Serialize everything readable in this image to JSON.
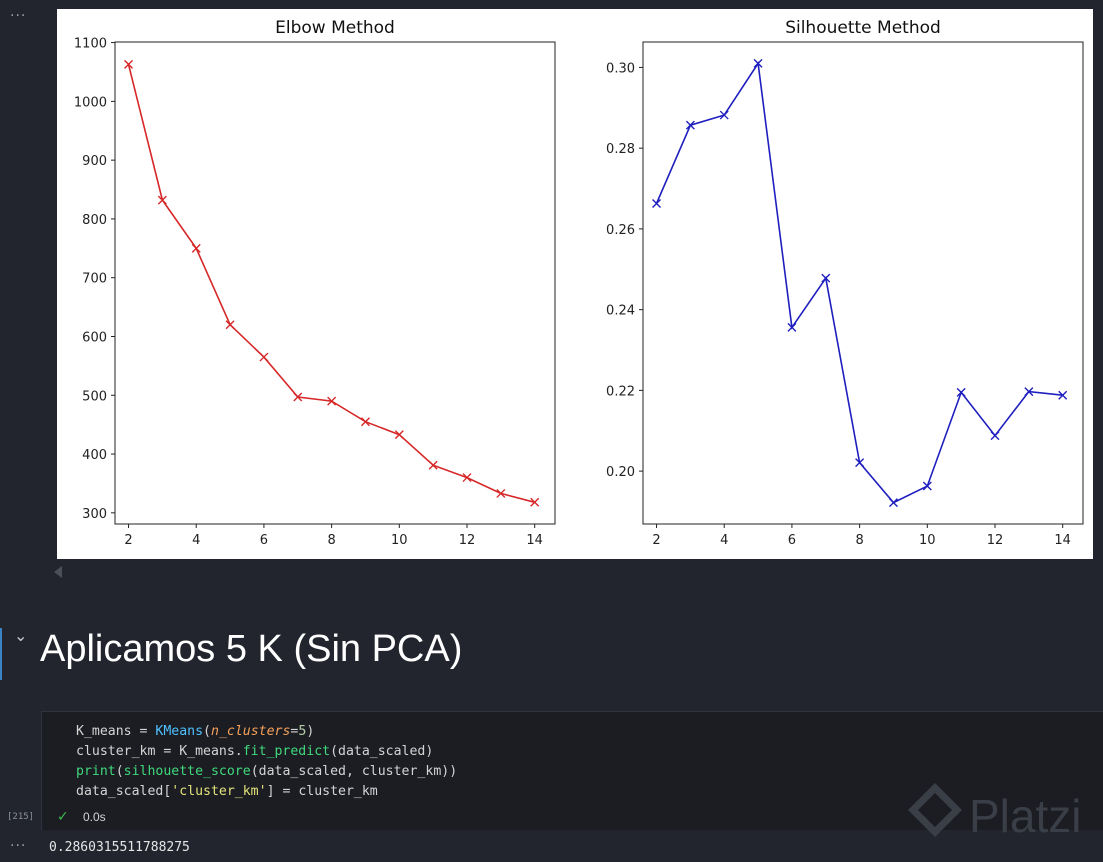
{
  "gutter": {
    "cell_menu": "···",
    "output_menu": "···"
  },
  "plots": {
    "chart_data": [
      {
        "type": "line",
        "title": "Elbow Method",
        "x": [
          2,
          3,
          4,
          5,
          6,
          7,
          8,
          9,
          10,
          11,
          12,
          13,
          14
        ],
        "series": [
          {
            "values": [
              1063,
              832,
              750,
              620,
              565,
              497,
              490,
              455,
              433,
              381,
              360,
              333,
              318
            ],
            "color": "#d62728",
            "marker": "x"
          }
        ],
        "xticks": [
          2,
          4,
          6,
          8,
          10,
          12,
          14
        ],
        "yticks": [
          300,
          400,
          500,
          600,
          700,
          800,
          900,
          1000,
          1100
        ],
        "xlim": [
          1.6,
          14.6
        ],
        "ylim": [
          281,
          1101
        ],
        "xlabel": "",
        "ylabel": "",
        "grid": false
      },
      {
        "type": "line",
        "title": "Silhouette Method",
        "x": [
          2,
          3,
          4,
          5,
          6,
          7,
          8,
          9,
          10,
          11,
          12,
          13,
          14
        ],
        "series": [
          {
            "values": [
              0.2663,
              0.2857,
              0.2882,
              0.301,
              0.2356,
              0.2478,
              0.2021,
              0.1922,
              0.1963,
              0.2195,
              0.2088,
              0.2197,
              0.2188
            ],
            "color": "#1f1fbf",
            "marker": "x"
          }
        ],
        "xticks": [
          2,
          4,
          6,
          8,
          10,
          12,
          14
        ],
        "yticks": [
          0.2,
          0.22,
          0.24,
          0.26,
          0.28,
          0.3
        ],
        "yformat": 2,
        "xlim": [
          1.6,
          14.6
        ],
        "ylim": [
          0.1869,
          0.3063
        ],
        "xlabel": "",
        "ylabel": "",
        "grid": false
      }
    ]
  },
  "markdown": {
    "heading": "Aplicamos 5 K (Sin PCA)"
  },
  "code_cell": {
    "exec_count": "[215]",
    "status_time": "0.0s",
    "lines": [
      [
        {
          "t": "K_means = ",
          "c": ""
        },
        {
          "t": "KMeans",
          "c": "tk-fn"
        },
        {
          "t": "(",
          "c": ""
        },
        {
          "t": "n_clusters",
          "c": "tk-arg"
        },
        {
          "t": "=",
          "c": ""
        },
        {
          "t": "5",
          "c": "tk-num"
        },
        {
          "t": ")",
          "c": ""
        }
      ],
      [
        {
          "t": "cluster_km = K_means.",
          "c": ""
        },
        {
          "t": "fit_predict",
          "c": "tk-call"
        },
        {
          "t": "(data_scaled)",
          "c": ""
        }
      ],
      [
        {
          "t": "print",
          "c": "tk-call"
        },
        {
          "t": "(",
          "c": ""
        },
        {
          "t": "silhouette_score",
          "c": "tk-call"
        },
        {
          "t": "(data_scaled, cluster_km))",
          "c": ""
        }
      ],
      [
        {
          "t": "data_scaled[",
          "c": ""
        },
        {
          "t": "'cluster_km'",
          "c": "tk-str"
        },
        {
          "t": "] = cluster_km",
          "c": ""
        }
      ]
    ]
  },
  "output": {
    "text": "0.2860315511788275"
  },
  "watermark": {
    "text": "Platzi"
  }
}
